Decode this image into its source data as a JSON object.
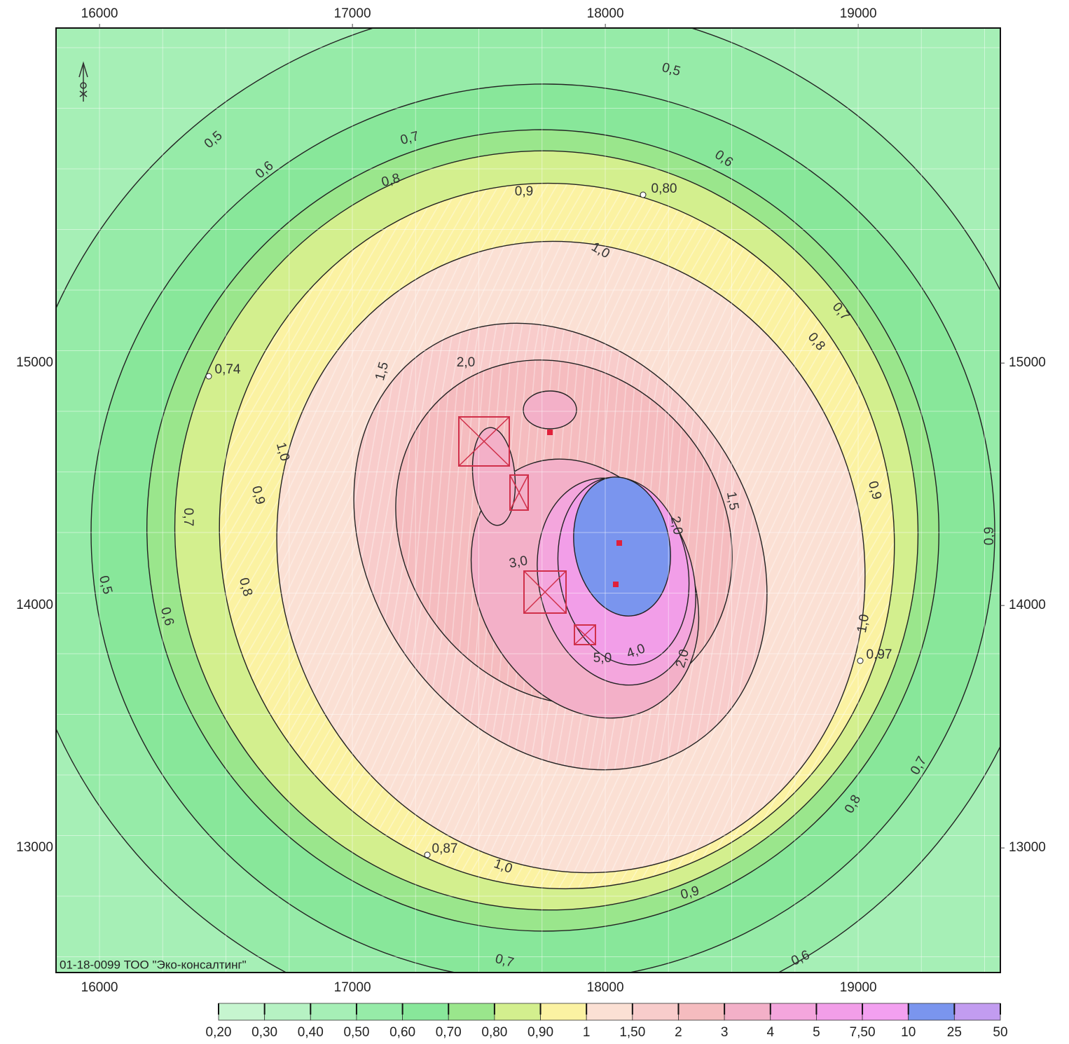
{
  "map": {
    "x_ticks": [
      16000,
      17000,
      18000,
      19000
    ],
    "y_ticks": [
      15000,
      14000,
      13000
    ],
    "xlim": [
      15828,
      19562
    ],
    "ylim": [
      12486,
      16382
    ],
    "contour_labels": [
      "0,5",
      "0,5",
      "0,6",
      "0,7",
      "0,8",
      "0,9",
      "0,80",
      "0,6",
      "1,0",
      "0,7",
      "0,8",
      "0,74",
      "1,5",
      "2,0",
      "1,0",
      "0,9",
      "0,7",
      "0,5",
      "0,8",
      "0,6",
      "1,5",
      "0,9",
      "0,9",
      "3,0",
      "2,0",
      "5,0",
      "4,0",
      "2,0",
      "1,0",
      "0,97",
      "0,7",
      "0,8",
      "0,87",
      "1,0",
      "0,9",
      "0,7",
      "0,6"
    ],
    "credit": "01-18-0099 ТОО \"Эко-консалтинг\"",
    "legend": {
      "labels": [
        "0,20",
        "0,30",
        "0,40",
        "0,50",
        "0,60",
        "0,70",
        "0,80",
        "0,90",
        "1",
        "1,50",
        "2",
        "3",
        "4",
        "5",
        "7,50",
        "10",
        "25",
        "50"
      ],
      "colors": [
        "#c6f5cf",
        "#b6f2c3",
        "#a6efb6",
        "#96eba8",
        "#88e79a",
        "#9ae68c",
        "#d3ef8e",
        "#fbf2a2",
        "#fbe0d4",
        "#f8cccb",
        "#f5bcbf",
        "#f3b0c8",
        "#f4a6dd",
        "#f29ee8",
        "#f3a0f0",
        "#7a95ee",
        "#c29cf0"
      ]
    }
  }
}
